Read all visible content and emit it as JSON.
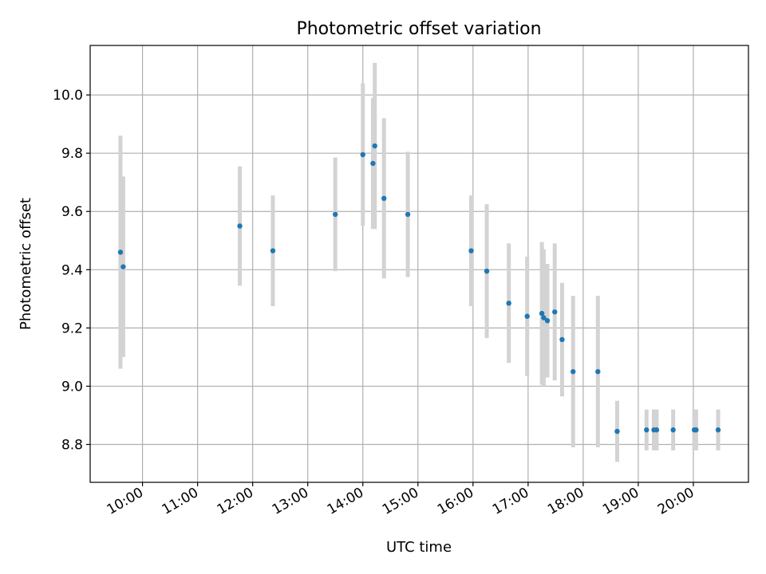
{
  "chart_data": {
    "type": "scatter",
    "title": "Photometric offset variation",
    "xlabel": "UTC time",
    "ylabel": "Photometric offset",
    "x_ticks": [
      "10:00",
      "11:00",
      "12:00",
      "13:00",
      "14:00",
      "15:00",
      "16:00",
      "17:00",
      "18:00",
      "19:00",
      "20:00"
    ],
    "y_ticks": [
      "8.8",
      "9.0",
      "9.2",
      "9.4",
      "9.6",
      "9.8",
      "10.0"
    ],
    "xlim": [
      "09:03",
      "21:00"
    ],
    "ylim": [
      8.67,
      10.17
    ],
    "grid": true,
    "marker_color": "#1f77b4",
    "errorbar_color": "#d3d3d3",
    "points": [
      {
        "x": "09:36",
        "y": 9.46,
        "err": 0.4
      },
      {
        "x": "09:39",
        "y": 9.41,
        "err": 0.31
      },
      {
        "x": "11:46",
        "y": 9.55,
        "err": 0.205
      },
      {
        "x": "12:22",
        "y": 9.465,
        "err": 0.19
      },
      {
        "x": "13:30",
        "y": 9.59,
        "err": 0.195
      },
      {
        "x": "14:00",
        "y": 9.795,
        "err": 0.245
      },
      {
        "x": "14:11",
        "y": 9.765,
        "err": 0.225
      },
      {
        "x": "14:13",
        "y": 9.825,
        "err": 0.285
      },
      {
        "x": "14:23",
        "y": 9.645,
        "err": 0.275
      },
      {
        "x": "14:49",
        "y": 9.59,
        "err": 0.215
      },
      {
        "x": "15:58",
        "y": 9.465,
        "err": 0.19
      },
      {
        "x": "16:15",
        "y": 9.395,
        "err": 0.23
      },
      {
        "x": "16:39",
        "y": 9.285,
        "err": 0.205
      },
      {
        "x": "16:59",
        "y": 9.24,
        "err": 0.205
      },
      {
        "x": "17:15",
        "y": 9.25,
        "err": 0.245
      },
      {
        "x": "17:17",
        "y": 9.235,
        "err": 0.235
      },
      {
        "x": "17:21",
        "y": 9.225,
        "err": 0.195
      },
      {
        "x": "17:29",
        "y": 9.255,
        "err": 0.235
      },
      {
        "x": "17:37",
        "y": 9.16,
        "err": 0.195
      },
      {
        "x": "17:49",
        "y": 9.05,
        "err": 0.26
      },
      {
        "x": "18:16",
        "y": 9.05,
        "err": 0.26
      },
      {
        "x": "18:37",
        "y": 8.845,
        "err": 0.105
      },
      {
        "x": "19:09",
        "y": 8.85,
        "err": 0.07
      },
      {
        "x": "19:17",
        "y": 8.85,
        "err": 0.07
      },
      {
        "x": "19:20",
        "y": 8.85,
        "err": 0.07
      },
      {
        "x": "19:38",
        "y": 8.85,
        "err": 0.07
      },
      {
        "x": "20:01",
        "y": 8.85,
        "err": 0.07
      },
      {
        "x": "20:03",
        "y": 8.85,
        "err": 0.07
      },
      {
        "x": "20:27",
        "y": 8.85,
        "err": 0.07
      }
    ]
  }
}
